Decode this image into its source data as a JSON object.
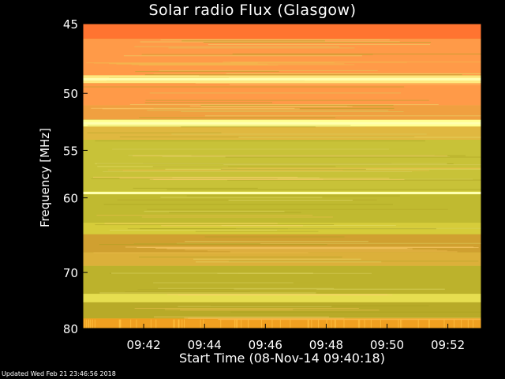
{
  "chart_data": {
    "type": "heatmap",
    "title": "Solar radio Flux (Glasgow)",
    "xlabel": "Start Time (08-Nov-14 09:40:18)",
    "ylabel": "Frequency [MHz]",
    "x_ticks": [
      "09:42",
      "09:44",
      "09:46",
      "09:48",
      "09:50",
      "09:52"
    ],
    "x_tick_minutes": [
      2,
      4,
      6,
      8,
      10,
      12
    ],
    "x_range_minutes": [
      0,
      13.1
    ],
    "y_ticks": [
      45,
      50,
      55,
      60,
      70,
      80
    ],
    "y_range": [
      45,
      80
    ],
    "y_scale": "reciprocal",
    "bands": [
      {
        "from": 45,
        "to": 46,
        "color": "#ff7430"
      },
      {
        "from": 46,
        "to": 48.6,
        "color": "#ff9a48"
      },
      {
        "from": 48.6,
        "to": 49.2,
        "color": "#ffe880"
      },
      {
        "from": 49.2,
        "to": 51,
        "color": "#ff9a48"
      },
      {
        "from": 51,
        "to": 52.2,
        "color": "#f0a040"
      },
      {
        "from": 52.2,
        "to": 52.8,
        "color": "#ffff90"
      },
      {
        "from": 52.8,
        "to": 54,
        "color": "#e0b840"
      },
      {
        "from": 54,
        "to": 59.3,
        "color": "#c8c238"
      },
      {
        "from": 59.3,
        "to": 59.6,
        "color": "#ffff66"
      },
      {
        "from": 59.6,
        "to": 63,
        "color": "#c0ba30"
      },
      {
        "from": 63,
        "to": 64.5,
        "color": "#d6cc3a"
      },
      {
        "from": 64.5,
        "to": 67,
        "color": "#d0a030"
      },
      {
        "from": 67,
        "to": 69,
        "color": "#dcb03a"
      },
      {
        "from": 69,
        "to": 73.5,
        "color": "#bcb22c"
      },
      {
        "from": 73.5,
        "to": 75,
        "color": "#e6de50"
      },
      {
        "from": 75,
        "to": 78,
        "color": "#b8aa28"
      },
      {
        "from": 78,
        "to": 80,
        "color": "#f0a020"
      }
    ],
    "bright_lines_mhz": [
      48.9,
      52.5,
      59.45
    ],
    "background_color": "#c8bf34",
    "grid": false,
    "legend": "none"
  },
  "footer": "Updated Wed Feb 21 23:46:56 2018"
}
